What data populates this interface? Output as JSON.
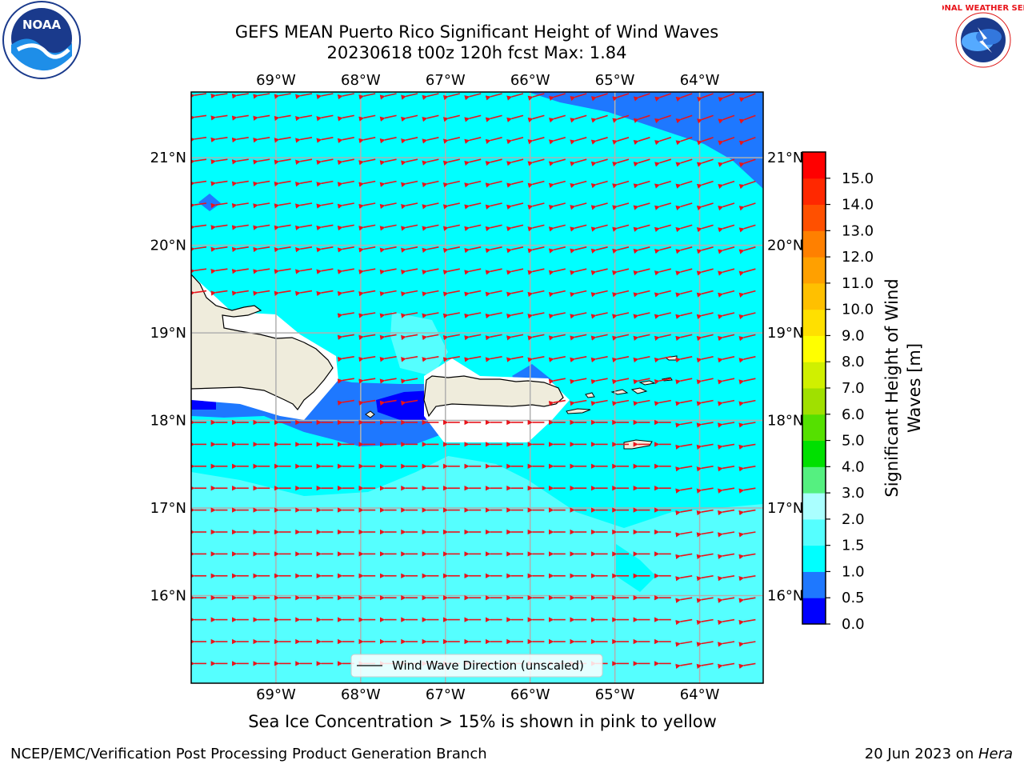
{
  "title": {
    "line1": "GEFS MEAN Puerto Rico Significant Height of Wind Waves",
    "line2": "20230618 t00z 120h fcst   Max: 1.84"
  },
  "logos": {
    "left": {
      "icon": "noaa-logo",
      "text": "NOAA"
    },
    "right": {
      "icon": "nws-logo",
      "text": "NATIONAL WEATHER SERVICE"
    }
  },
  "map": {
    "lon_labels": [
      "69°W",
      "68°W",
      "67°W",
      "66°W",
      "65°W",
      "64°W"
    ],
    "lat_labels": [
      "21°N",
      "20°N",
      "19°N",
      "18°N",
      "17°N",
      "16°N"
    ],
    "lon_range": [
      -70.0,
      -63.25
    ],
    "lat_range": [
      15.0,
      21.75
    ],
    "legend_label": "Wind Wave Direction (unscaled)",
    "arrow_color": "#e8141b",
    "land_color": "#efecdc",
    "ocean_colors": {
      "0.0-0.5": "#0000ff",
      "0.5-1.0": "#1e78ff",
      "1.0-1.5": "#00ffff",
      "1.5-2.0": "#55ffff",
      "2.0-3.0": "#aaffff"
    }
  },
  "colorbar": {
    "label": "Significant Height of Wind Waves [m]",
    "ticks": [
      "0.0",
      "0.5",
      "1.0",
      "1.5",
      "2.0",
      "3.0",
      "4.0",
      "5.0",
      "6.0",
      "7.0",
      "8.0",
      "9.0",
      "10.0",
      "11.0",
      "12.0",
      "13.0",
      "14.0",
      "15.0"
    ],
    "colors": [
      "#0000ff",
      "#1e78ff",
      "#00ffff",
      "#55ffff",
      "#aaffff",
      "#55f080",
      "#00e000",
      "#55e000",
      "#a0e000",
      "#d0f000",
      "#ffff00",
      "#ffe000",
      "#ffc000",
      "#ffa000",
      "#ff8000",
      "#ff5000",
      "#ff2800",
      "#ff0000"
    ]
  },
  "note": "Sea Ice Concentration > 15% is shown in pink to yellow",
  "footer": {
    "left": "NCEP/EMC/Verification Post Processing Product Generation Branch",
    "right_date": "20 Jun 2023 on ",
    "right_host": "Hera"
  }
}
